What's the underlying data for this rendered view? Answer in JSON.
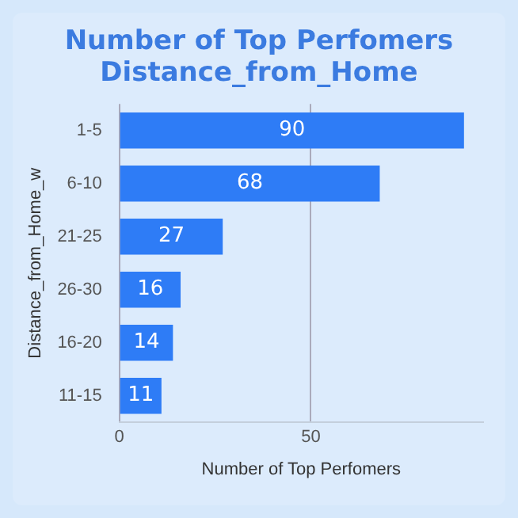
{
  "chart_data": {
    "type": "bar",
    "orientation": "horizontal",
    "title": "Number of Top Perfomers\nDistance_from_Home",
    "xlabel": "Number of Top Perfomers",
    "ylabel": "Distance_from_Home_w",
    "categories": [
      "1-5",
      "6-10",
      "21-25",
      "26-30",
      "16-20",
      "11-15"
    ],
    "values": [
      90,
      68,
      27,
      16,
      14,
      11
    ],
    "color": "#2e7cf6",
    "xlim": [
      0,
      95
    ],
    "xticks": [
      0,
      50
    ],
    "grid": "x",
    "data_labels": true
  }
}
